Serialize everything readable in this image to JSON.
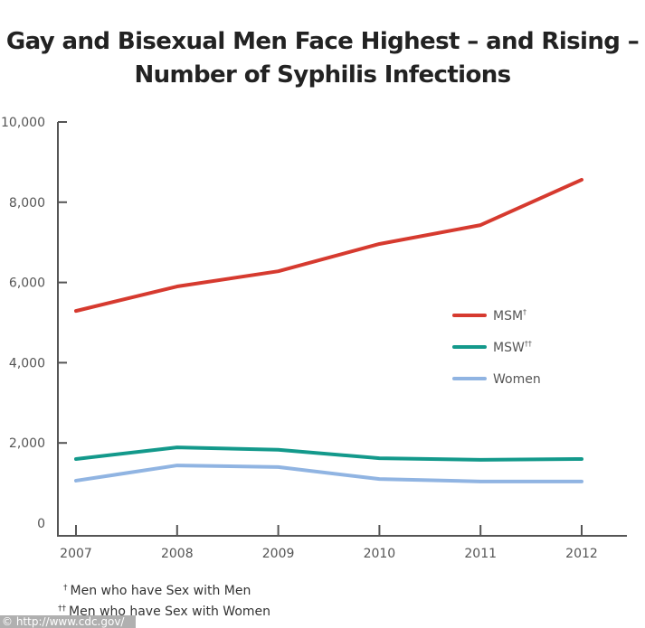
{
  "chart_data": {
    "type": "line",
    "title": "Gay and Bisexual Men Face Highest – and Rising – Number of Syphilis Infections",
    "title_lines": [
      "Gay and Bisexual Men Face Highest – and Rising –",
      "Number of Syphilis Infections"
    ],
    "xlabel": "",
    "ylabel": "",
    "x": [
      "2007",
      "2008",
      "2009",
      "2010",
      "2011",
      "2012"
    ],
    "ylim": [
      0,
      10000
    ],
    "yticks": [
      0,
      2000,
      4000,
      6000,
      8000,
      10000
    ],
    "ytick_labels": [
      "0",
      "2,000",
      "4,000",
      "6,000",
      "8,000",
      "10,000"
    ],
    "grid": false,
    "legend_position": "right-middle",
    "series": [
      {
        "name": "MSM",
        "marker": "†",
        "color": "#d63a2f",
        "values": [
          5290,
          5900,
          6280,
          6960,
          7430,
          8560
        ]
      },
      {
        "name": "MSW",
        "marker": "††",
        "color": "#13998b",
        "values": [
          1600,
          1890,
          1830,
          1620,
          1580,
          1600
        ]
      },
      {
        "name": "Women",
        "marker": "",
        "color": "#90b4e2",
        "values": [
          1060,
          1440,
          1400,
          1100,
          1040,
          1040
        ]
      }
    ]
  },
  "footnotes": [
    {
      "mark": "†",
      "text": "Men who have Sex with Men"
    },
    {
      "mark": "††",
      "text": "Men who have Sex with Women"
    }
  ],
  "watermark": "© http://www.cdc.gov/",
  "colors": {
    "axis": "#555555",
    "text": "#333333"
  }
}
